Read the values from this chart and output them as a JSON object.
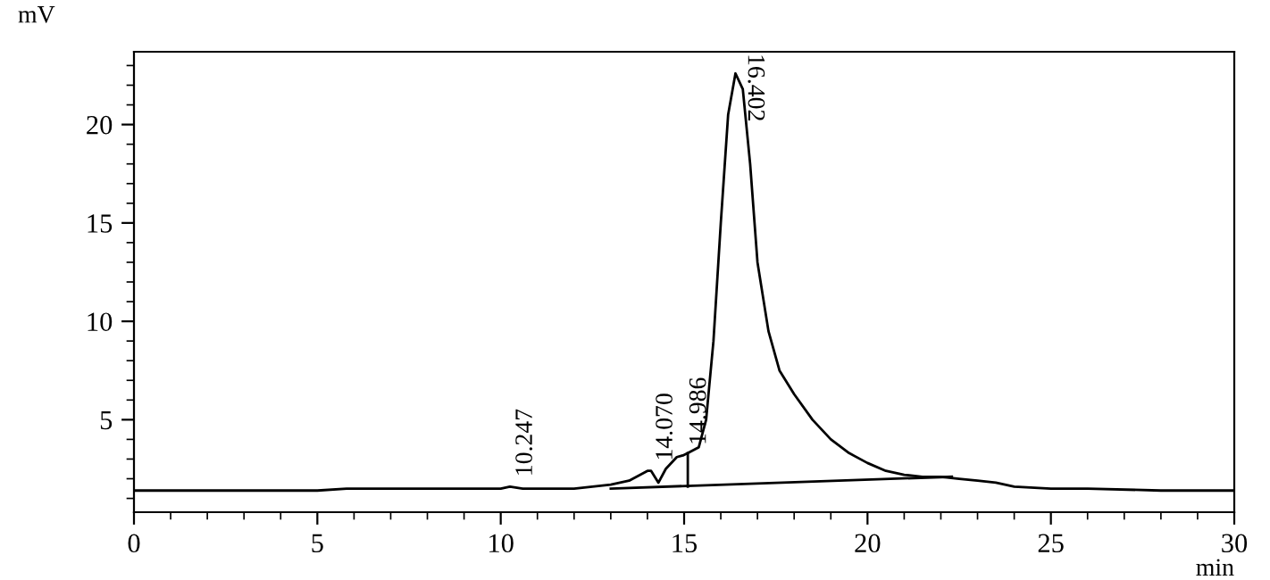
{
  "chart_data": {
    "type": "line",
    "ylabel": "mV",
    "xlabel": "min",
    "xlim": [
      0,
      30
    ],
    "xticks": [
      0,
      5,
      10,
      15,
      20,
      25,
      30
    ],
    "ylim": [
      0.3,
      23.7
    ],
    "yticks": [
      5,
      10,
      15,
      20
    ],
    "grid": false,
    "legend": false,
    "series": [
      {
        "color": "#000000",
        "x": [
          0,
          5,
          5.8,
          7,
          10,
          10.25,
          10.6,
          12,
          13,
          13.5,
          14.0,
          14.1,
          14.3,
          14.5,
          14.8,
          14.99,
          15.1,
          15.4,
          15.6,
          15.8,
          16.0,
          16.2,
          16.4,
          16.6,
          16.8,
          17.0,
          17.3,
          17.6,
          18,
          18.5,
          19,
          19.5,
          20,
          20.5,
          21,
          21.5,
          22,
          22.5,
          23,
          23.5,
          24,
          25,
          26,
          28,
          30
        ],
        "values": [
          1.4,
          1.4,
          1.5,
          1.5,
          1.5,
          1.6,
          1.5,
          1.5,
          1.7,
          1.9,
          2.4,
          2.4,
          1.8,
          2.5,
          3.1,
          3.2,
          3.3,
          3.6,
          5,
          9,
          15,
          20.5,
          22.6,
          21.8,
          18,
          13,
          9.5,
          7.5,
          6.3,
          5.0,
          4.0,
          3.3,
          2.8,
          2.4,
          2.2,
          2.1,
          2.1,
          2.0,
          1.9,
          1.8,
          1.6,
          1.5,
          1.5,
          1.4,
          1.4
        ]
      },
      {
        "color": "#000000",
        "x": [
          13.0,
          22.3
        ],
        "values": [
          1.5,
          2.1
        ]
      },
      {
        "color": "#000000",
        "x": [
          15.1,
          15.1
        ],
        "values": [
          1.6,
          3.3
        ]
      }
    ],
    "annotations": [
      {
        "text": "10.247",
        "x": 10.247,
        "y": 1.6
      },
      {
        "text": "14.070",
        "x": 14.07,
        "y": 2.4
      },
      {
        "text": "14.986",
        "x": 14.986,
        "y": 3.2
      },
      {
        "text": "16.402",
        "x": 16.402,
        "y": 22.6
      }
    ]
  }
}
